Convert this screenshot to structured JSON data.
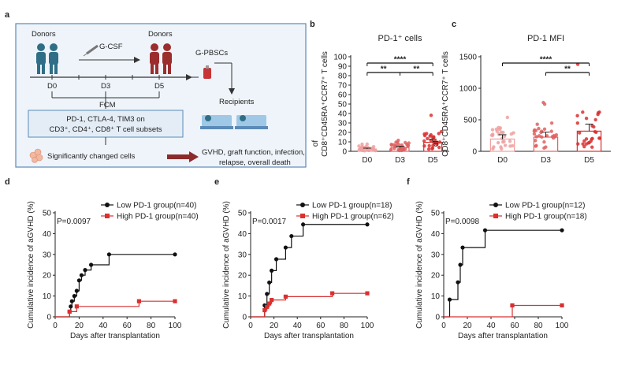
{
  "panels": {
    "a": "a",
    "b": "b",
    "c": "c",
    "d": "d",
    "e": "e",
    "f": "f"
  },
  "schematic": {
    "donors_left": "Donors",
    "donors_right": "Donors",
    "gcsf": "G-CSF",
    "days": [
      "D0",
      "D3",
      "D5"
    ],
    "gpbscs": "G-PBSCs",
    "recipients": "Recipients",
    "fcm": "FCM",
    "markers_line1": "PD-1, CTLA-4, TIM3 on",
    "markers_line2": "CD3⁺, CD4⁺, CD8⁺ T cell subsets",
    "changed": "Significantly changed cells",
    "outcome_line1": "GVHD, graft function, infection,",
    "outcome_line2": "relapse, overall death",
    "colors": {
      "box_border": "#5a8ab8",
      "box_fill": "#eef4fa",
      "donor_blue": "#2f6e86",
      "donor_red": "#9b2d2d",
      "arrow_red": "#8b2b2b"
    }
  },
  "chart_data": [
    {
      "id": "b",
      "type": "bar",
      "title": "PD-1⁺ cells",
      "ylabel_line1": "of",
      "ylabel_line2": "CD8⁺CD45RA⁺CCR7⁺ T cells",
      "categories": [
        "D0",
        "D3",
        "D5"
      ],
      "values": [
        2.5,
        4.0,
        9.5
      ],
      "ylim": [
        0,
        100
      ],
      "yticks": [
        0,
        10,
        20,
        30,
        40,
        50,
        60,
        70,
        80,
        90,
        100
      ],
      "colors": [
        "#f0a0a0",
        "#e06060",
        "#d93030"
      ],
      "significance": [
        {
          "from": 0,
          "to": 2,
          "label": "****"
        },
        {
          "from": 0,
          "to": 1,
          "label": "**"
        },
        {
          "from": 1,
          "to": 2,
          "label": "**"
        }
      ]
    },
    {
      "id": "c",
      "type": "bar",
      "title": "PD-1 MFI",
      "ylabel_line1": "of",
      "ylabel_line2": "CD8⁺CD45RA⁺CCR7⁺ T cells",
      "categories": [
        "D0",
        "D3",
        "D5"
      ],
      "values": [
        195,
        225,
        320
      ],
      "ylim": [
        0,
        1500
      ],
      "yticks": [
        0,
        500,
        1000,
        1500
      ],
      "colors": [
        "#f0a0a0",
        "#e06060",
        "#d93030"
      ],
      "significance": [
        {
          "from": 0,
          "to": 2,
          "label": "****"
        },
        {
          "from": 1,
          "to": 2,
          "label": "**"
        }
      ]
    },
    {
      "id": "d",
      "type": "line",
      "ylabel": "Cumulative incidence of aGVHD (%)",
      "xlabel": "Days after transplantation",
      "pvalue": "P=0.0097",
      "xlim": [
        0,
        100
      ],
      "ylim": [
        0,
        50
      ],
      "xticks": [
        0,
        20,
        40,
        60,
        80,
        100
      ],
      "yticks": [
        0,
        10,
        20,
        30,
        40,
        50
      ],
      "series": [
        {
          "name": "Low PD-1 group(n=40)",
          "color": "#111111",
          "x": [
            0,
            12,
            13,
            14,
            16,
            18,
            20,
            22,
            25,
            30,
            45,
            100
          ],
          "y": [
            0,
            2.5,
            5,
            7.5,
            10,
            12.5,
            17.5,
            20,
            22.5,
            25,
            30,
            30
          ]
        },
        {
          "name": "High PD-1 group(n=40)",
          "color": "#d93030",
          "x": [
            0,
            12,
            15,
            18,
            70,
            100
          ],
          "y": [
            0,
            2.5,
            2.5,
            5,
            7.5,
            7.5
          ]
        }
      ]
    },
    {
      "id": "e",
      "type": "line",
      "ylabel": "Cumulative incidence of aGVHD (%)",
      "xlabel": "Days after transplantation",
      "pvalue": "P=0.0017",
      "xlim": [
        0,
        100
      ],
      "ylim": [
        0,
        50
      ],
      "xticks": [
        0,
        20,
        40,
        60,
        80,
        100
      ],
      "yticks": [
        0,
        10,
        20,
        30,
        40,
        50
      ],
      "series": [
        {
          "name": "Low PD-1 group(n=18)",
          "color": "#111111",
          "x": [
            0,
            12,
            14,
            16,
            18,
            22,
            25,
            30,
            35,
            45,
            100
          ],
          "y": [
            0,
            5.5,
            11,
            16.5,
            22.2,
            27.7,
            27.7,
            33.3,
            38.8,
            44.4,
            44.4
          ]
        },
        {
          "name": "High PD-1 group(n=62)",
          "color": "#d93030",
          "x": [
            0,
            12,
            14,
            16,
            18,
            30,
            70,
            100
          ],
          "y": [
            0,
            3.2,
            4.8,
            6.4,
            8.1,
            9.7,
            11.3,
            11.3
          ]
        }
      ]
    },
    {
      "id": "f",
      "type": "line",
      "ylabel": "Cumulative incidence of aGVHD (%)",
      "xlabel": "Days after transplantation",
      "pvalue": "P=0.0098",
      "xlim": [
        0,
        100
      ],
      "ylim": [
        0,
        50
      ],
      "xticks": [
        0,
        20,
        40,
        60,
        80,
        100
      ],
      "yticks": [
        0,
        10,
        20,
        30,
        40,
        50
      ],
      "series": [
        {
          "name": "Low PD-1 group(n=12)",
          "color": "#111111",
          "x": [
            0,
            5,
            12,
            14,
            16,
            35,
            100
          ],
          "y": [
            0,
            8.3,
            16.6,
            25,
            33.3,
            41.6,
            41.6
          ]
        },
        {
          "name": "High PD-1 group(n=18)",
          "color": "#d93030",
          "x": [
            0,
            58,
            100
          ],
          "y": [
            0,
            5.5,
            5.5
          ]
        }
      ]
    }
  ]
}
